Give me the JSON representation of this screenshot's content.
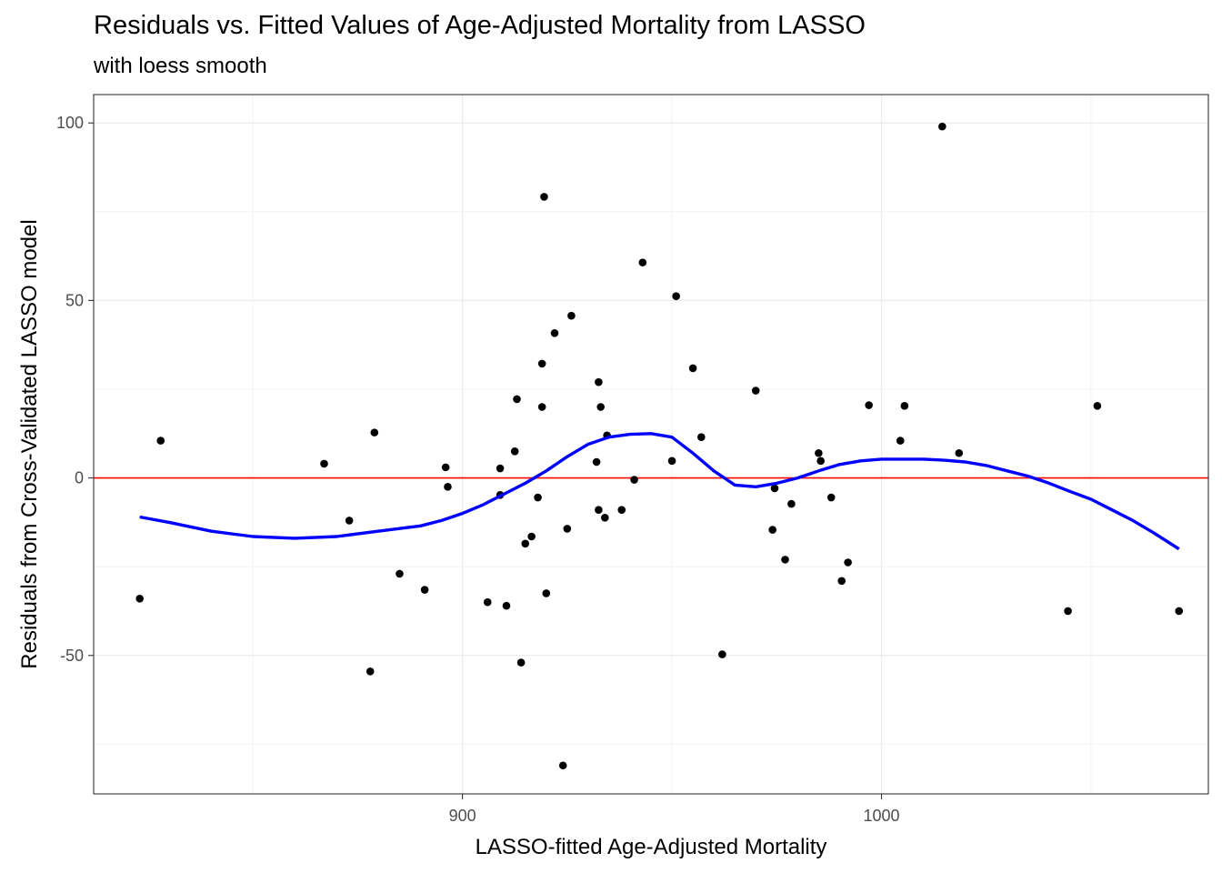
{
  "chart_data": {
    "type": "scatter",
    "title": "Residuals vs. Fitted Values of Age-Adjusted Mortality from LASSO",
    "subtitle": "with loess smooth",
    "xlabel": "LASSO-fitted Age-Adjusted Mortality",
    "ylabel": "Residuals from Cross-Validated LASSO model",
    "xlim": [
      812,
      1078
    ],
    "ylim": [
      -89,
      108
    ],
    "x_ticks": [
      900,
      1000
    ],
    "x_tick_labels": [
      "900",
      "1000"
    ],
    "y_ticks": [
      -50,
      0,
      50,
      100
    ],
    "y_tick_labels": [
      "-50",
      "0",
      "50",
      "100"
    ],
    "grid": true,
    "reference_line": {
      "y": 0,
      "color": "#ff0000"
    },
    "points": [
      {
        "x": 823,
        "y": -34
      },
      {
        "x": 828,
        "y": 10.5
      },
      {
        "x": 867,
        "y": 4
      },
      {
        "x": 873,
        "y": -12
      },
      {
        "x": 878,
        "y": -54.5
      },
      {
        "x": 879,
        "y": 12.8
      },
      {
        "x": 885,
        "y": -27
      },
      {
        "x": 891,
        "y": -31.5
      },
      {
        "x": 896,
        "y": 3
      },
      {
        "x": 896.5,
        "y": -2.5
      },
      {
        "x": 906,
        "y": -35
      },
      {
        "x": 909,
        "y": 2.7
      },
      {
        "x": 909,
        "y": -4.8
      },
      {
        "x": 910.5,
        "y": -36
      },
      {
        "x": 912.5,
        "y": 7.5
      },
      {
        "x": 913,
        "y": 22.2
      },
      {
        "x": 914,
        "y": -52
      },
      {
        "x": 915,
        "y": -18.5
      },
      {
        "x": 916.5,
        "y": -16.5
      },
      {
        "x": 918,
        "y": -5.5
      },
      {
        "x": 919,
        "y": 20
      },
      {
        "x": 919,
        "y": 32.2
      },
      {
        "x": 919.5,
        "y": 79.2
      },
      {
        "x": 920,
        "y": -32.5
      },
      {
        "x": 922,
        "y": 40.8
      },
      {
        "x": 924,
        "y": -81
      },
      {
        "x": 925,
        "y": -14.3
      },
      {
        "x": 926,
        "y": 45.7
      },
      {
        "x": 932,
        "y": 4.5
      },
      {
        "x": 932.5,
        "y": 27
      },
      {
        "x": 932.5,
        "y": -9
      },
      {
        "x": 933,
        "y": 20
      },
      {
        "x": 934,
        "y": -11.2
      },
      {
        "x": 934.5,
        "y": 12
      },
      {
        "x": 938,
        "y": -9
      },
      {
        "x": 941,
        "y": -0.5
      },
      {
        "x": 943,
        "y": 60.7
      },
      {
        "x": 950,
        "y": 4.8
      },
      {
        "x": 951,
        "y": 51.2
      },
      {
        "x": 955,
        "y": 30.9
      },
      {
        "x": 957,
        "y": 11.5
      },
      {
        "x": 962,
        "y": -49.7
      },
      {
        "x": 970,
        "y": 24.6
      },
      {
        "x": 974,
        "y": -14.6
      },
      {
        "x": 974.5,
        "y": -2.9
      },
      {
        "x": 977,
        "y": -23
      },
      {
        "x": 978.5,
        "y": -7.3
      },
      {
        "x": 985,
        "y": 7
      },
      {
        "x": 985.5,
        "y": 4.8
      },
      {
        "x": 988,
        "y": -5.5
      },
      {
        "x": 990.5,
        "y": -29
      },
      {
        "x": 992,
        "y": -23.8
      },
      {
        "x": 997,
        "y": 20.5
      },
      {
        "x": 1004.5,
        "y": 10.5
      },
      {
        "x": 1005.5,
        "y": 20.3
      },
      {
        "x": 1014.5,
        "y": 99
      },
      {
        "x": 1018.5,
        "y": 7
      },
      {
        "x": 1044.5,
        "y": -37.5
      },
      {
        "x": 1051.5,
        "y": 20.3
      },
      {
        "x": 1071,
        "y": -37.5
      }
    ],
    "loess": {
      "color": "#0000ff",
      "x": [
        823,
        830,
        840,
        850,
        860,
        870,
        880,
        890,
        895,
        900,
        905,
        910,
        915,
        920,
        925,
        930,
        935,
        940,
        945,
        950,
        955,
        960,
        965,
        970,
        975,
        980,
        985,
        990,
        995,
        1000,
        1005,
        1010,
        1015,
        1020,
        1025,
        1030,
        1035,
        1040,
        1045,
        1050,
        1055,
        1060,
        1065,
        1071
      ],
      "y": [
        -11,
        -12.5,
        -15,
        -16.5,
        -17,
        -16.5,
        -15,
        -13.5,
        -12,
        -10,
        -7.5,
        -4.5,
        -1.5,
        2,
        6,
        9.5,
        11.5,
        12.3,
        12.5,
        11.5,
        7,
        2,
        -2,
        -2.5,
        -1.5,
        0,
        2,
        3.8,
        4.8,
        5.3,
        5.3,
        5.3,
        5,
        4.5,
        3.5,
        2,
        0.5,
        -1.5,
        -3.8,
        -6,
        -9,
        -12,
        -15.5,
        -20
      ]
    }
  }
}
